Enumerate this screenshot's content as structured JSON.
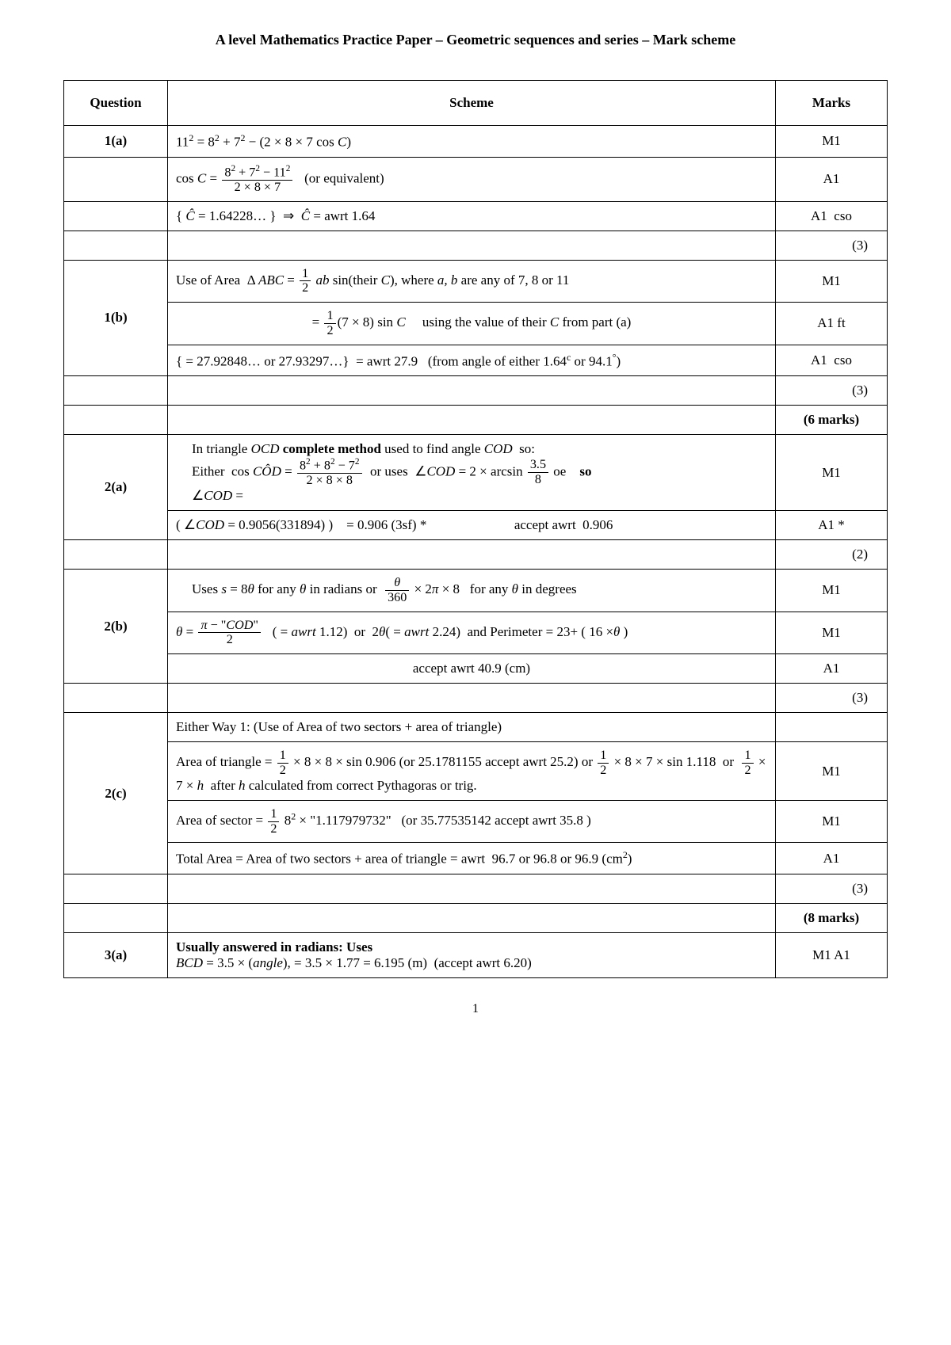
{
  "title": "A level Mathematics Practice Paper – Geometric sequences and series – Mark scheme",
  "pagenum": "1",
  "headers": {
    "q": "Question",
    "scheme": "Scheme",
    "marks": "Marks"
  },
  "rows": [
    {
      "q": "1(a)",
      "scheme_html": "11<sup>2</sup> = 8<sup>2</sup> + 7<sup>2</sup> − (2 × 8 × 7 cos <span class='math'>C</span>)",
      "mark": "M1"
    },
    {
      "q": "",
      "scheme_html": "cos <span class='math'>C</span> = <span class='frac'><span class='num'>8<sup>2</sup> + 7<sup>2</sup> − 11<sup>2</sup></span><span class='den'>2 × 8 × 7</span></span>&nbsp;&nbsp;&nbsp;(or equivalent)",
      "mark": "A1"
    },
    {
      "q": "",
      "scheme_html": "{ <span class='math'>Ĉ</span> = 1.64228… } &nbsp;⇒&nbsp; <span class='math'>Ĉ</span> = awrt 1.64",
      "mark": "A1&nbsp;&nbsp;cso"
    },
    {
      "q": "",
      "scheme_html": "",
      "mark_html": "<div class='subtotal'>(3)</div>"
    },
    {
      "q": "1(b)",
      "rowspan": 3,
      "scheme_html": "Use of Area&nbsp;&nbsp;Δ <span class='math'>ABC</span> = <span class='frac'><span class='num'>1</span><span class='den'>2</span></span> <span class='math'>ab</span> sin(their <span class='math'>C</span>), where <span class='math'>a, b</span> are any of 7, 8 or 11",
      "mark": "M1"
    },
    {
      "scheme_html": "<div class='center'>= <span class='frac'><span class='num'>1</span><span class='den'>2</span></span>(7 × 8) sin <span class='math'>C</span>&nbsp;&nbsp;&nbsp;&nbsp;&nbsp;using the value of their <span class='math'>C</span> from part (a)</div>",
      "mark": "A1 ft"
    },
    {
      "scheme_html": "{ = 27.92848…  or  27.93297…}&nbsp;&nbsp;= awrt 27.9&nbsp;&nbsp;&nbsp;(from angle of either 1.64<sup>c</sup> or 94.1<sup>°</sup>)",
      "mark": "A1&nbsp;&nbsp;cso"
    },
    {
      "q": "",
      "scheme_html": "",
      "mark_html": "<div class='subtotal'>(3)</div>"
    },
    {
      "q": "",
      "scheme_html": "",
      "mark_html": "<div class='total'>(6 marks)</div>"
    },
    {
      "q": "2(a)",
      "rowspan": 2,
      "scheme_html": "<div class='indent'>In triangle <span class='math'>OCD</span> <b>complete method</b> used to find angle <span class='math'>COD</span>&nbsp;&nbsp;so:</div><div class='indent'>Either&nbsp;&nbsp;cos <span class='math'>CÔD</span> = <span class='frac'><span class='num'>8<sup>2</sup> + 8<sup>2</sup> − 7<sup>2</sup></span><span class='den'>2 × 8 × 8</span></span>&nbsp;&nbsp;or uses&nbsp;&nbsp;∠<span class='math'>COD</span> = 2 × arcsin <span class='frac'><span class='num'>3.5</span><span class='den'>8</span></span> oe&nbsp;&nbsp;&nbsp;&nbsp;<b>so</b></div><div class='indent'>∠<span class='math'>COD</span> =</div>",
      "mark": "M1"
    },
    {
      "scheme_html": "( ∠<span class='math'>COD</span> = 0.9056(331894) )&nbsp;&nbsp;&nbsp;&nbsp;= 0.906 (3sf)&nbsp;*&nbsp;&nbsp;&nbsp;&nbsp;&nbsp;&nbsp;&nbsp;&nbsp;&nbsp;&nbsp;&nbsp;&nbsp;&nbsp;&nbsp;&nbsp;&nbsp;&nbsp;&nbsp;&nbsp;&nbsp;&nbsp;&nbsp;&nbsp;&nbsp;&nbsp;&nbsp;accept awrt&nbsp;&nbsp;0.906",
      "mark": "A1 *"
    },
    {
      "q": "",
      "scheme_html": "",
      "mark_html": "<div class='subtotal'>(2)</div>"
    },
    {
      "q": "2(b)",
      "rowspan": 3,
      "scheme_html": "<div class='indent'>Uses <span class='math'>s</span> = 8<span class='math'>θ</span> for any <span class='math'>θ</span> in radians or&nbsp;&nbsp;<span class='frac'><span class='num'><span class='math'>θ</span></span><span class='den'>360</span></span> × 2<span class='math'>π</span> × 8&nbsp;&nbsp;&nbsp;for any <span class='math'>θ</span> in degrees</div>",
      "mark": "M1"
    },
    {
      "scheme_html": "<span class='math'>θ</span> = <span class='frac'><span class='num'><span class='math'>π</span> − \"<span class='math'>COD</span>\"</span><span class='den'>2</span></span>&nbsp;&nbsp;&nbsp;( = <span class='math'>awrt</span> 1.12)&nbsp;&nbsp;or&nbsp;&nbsp;2<span class='math'>θ</span>( = <span class='math'>awrt</span> 2.24)&nbsp;&nbsp;and Perimeter = 23+ ( 16 ×<span class='math'>θ</span> )",
      "mark": "M1"
    },
    {
      "scheme_html": "<div class='center'>accept awrt 40.9 (cm)</div>",
      "mark": "A1"
    },
    {
      "q": "",
      "scheme_html": "",
      "mark_html": "<div class='subtotal'>(3)</div>"
    },
    {
      "q": "2(c)",
      "rowspan": 4,
      "scheme_html": "Either Way 1: (Use of Area of two sectors + area of triangle)",
      "mark": ""
    },
    {
      "scheme_html": "Area of triangle = <span class='frac'><span class='num'>1</span><span class='den'>2</span></span> × 8 × 8 × sin 0.906 (or 25.1781155 accept awrt 25.2) or <span class='frac'><span class='num'>1</span><span class='den'>2</span></span> × 8 × 7 × sin 1.118&nbsp;&nbsp;or&nbsp;&nbsp;<span class='frac'><span class='num'>1</span><span class='den'>2</span></span> × 7 × <span class='math'>h</span>&nbsp;&nbsp;after <span class='math'>h</span> calculated from correct Pythagoras or trig.",
      "mark": "M1"
    },
    {
      "scheme_html": "Area of sector = <span class='frac'><span class='num'>1</span><span class='den'>2</span></span> 8<sup>2</sup> × \"1.117979732\"&nbsp;&nbsp;&nbsp;(or 35.77535142 accept awrt 35.8 )",
      "mark": "M1"
    },
    {
      "scheme_html": "Total Area = Area of two sectors + area of triangle = awrt&nbsp;&nbsp;96.7 or 96.8 or 96.9 (cm<sup>2</sup>)",
      "mark": "A1"
    },
    {
      "q": "",
      "scheme_html": "",
      "mark_html": "<div class='subtotal'>(3)</div>"
    },
    {
      "q": "",
      "scheme_html": "",
      "mark_html": "<div class='total'>(8 marks)</div>"
    },
    {
      "q": "3(a)",
      "scheme_html": "<b>Usually answered in radians: Uses</b><br><span class='math'>BCD</span> = 3.5 × (<span class='math'>angle</span>), = 3.5 × 1.77 = 6.195 (m)&nbsp;&nbsp;(accept awrt 6.20)",
      "mark": "M1 A1"
    }
  ]
}
